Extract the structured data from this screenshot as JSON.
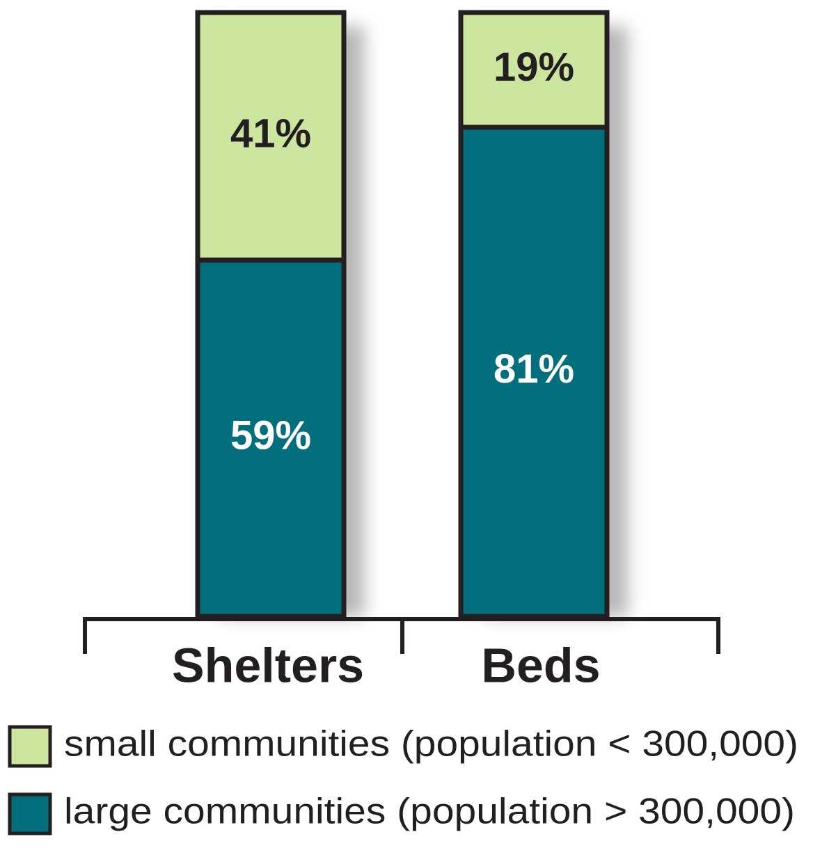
{
  "chart_data": {
    "type": "stacked_bar",
    "categories": [
      "Shelters",
      "Beds"
    ],
    "series": [
      {
        "name": "small communities (population < 300,000)",
        "color": "#cce6a0",
        "values": [
          41,
          19
        ],
        "value_labels": [
          "41%",
          "19%"
        ]
      },
      {
        "name": "large communities (population > 300,000)",
        "color": "#036f7d",
        "values": [
          59,
          81
        ],
        "value_labels": [
          "59%",
          "81%"
        ]
      }
    ]
  }
}
